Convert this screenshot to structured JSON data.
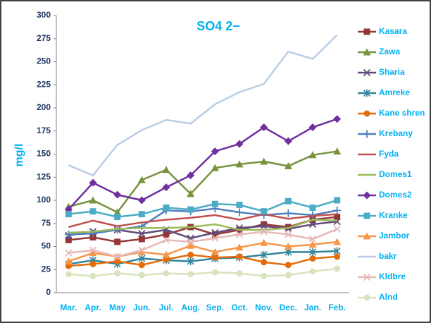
{
  "chart_data": {
    "type": "line",
    "title": "SO4 2−",
    "y_label": "mg/l",
    "categories": [
      "Mar.",
      "Apr.",
      "May",
      "Jun.",
      "Jul.",
      "Aug.",
      "Sep.",
      "Oct.",
      "Nov.",
      "Dec.",
      "Jan.",
      "Feb."
    ],
    "ylim": [
      0,
      300
    ],
    "yticks": [
      0,
      25,
      50,
      75,
      100,
      125,
      150,
      175,
      200,
      225,
      250,
      275,
      300
    ],
    "legend": "right",
    "series": [
      {
        "name": "Kasara",
        "color": "#943634",
        "marker": "square",
        "values": [
          57,
          60,
          55,
          58,
          63,
          71,
          63,
          68,
          74,
          71,
          79,
          82
        ]
      },
      {
        "name": "Zawa",
        "color": "#77933c",
        "marker": "triangle",
        "values": [
          93,
          100,
          87,
          122,
          133,
          107,
          135,
          139,
          142,
          137,
          149,
          153
        ]
      },
      {
        "name": "Sharia",
        "color": "#604a7b",
        "marker": "x",
        "values": [
          62,
          66,
          68,
          64,
          68,
          59,
          65,
          70,
          72,
          69,
          74,
          77
        ]
      },
      {
        "name": "Amreke",
        "color": "#31859c",
        "marker": "asterisk",
        "values": [
          31,
          35,
          31,
          37,
          35,
          34,
          37,
          38,
          41,
          44,
          44,
          45
        ]
      },
      {
        "name": "Kane shren",
        "color": "#e46c0a",
        "marker": "circle",
        "values": [
          29,
          31,
          34,
          30,
          36,
          41,
          38,
          39,
          33,
          30,
          37,
          39
        ]
      },
      {
        "name": "Krebany",
        "color": "#4f81bd",
        "marker": "plus",
        "values": [
          63,
          64,
          68,
          72,
          89,
          88,
          91,
          87,
          84,
          86,
          84,
          89
        ]
      },
      {
        "name": "Fyda",
        "color": "#c0504d",
        "marker": "none",
        "values": [
          71,
          78,
          72,
          76,
          79,
          81,
          84,
          79,
          85,
          80,
          83,
          85
        ]
      },
      {
        "name": "Domes1",
        "color": "#9bbb59",
        "marker": "none",
        "values": [
          65,
          66,
          69,
          70,
          70,
          71,
          74,
          68,
          68,
          70,
          79,
          78
        ]
      },
      {
        "name": "Domes2",
        "color": "#7030a0",
        "marker": "diamond",
        "values": [
          90,
          119,
          106,
          100,
          114,
          127,
          153,
          161,
          179,
          164,
          179,
          188
        ]
      },
      {
        "name": "Kranke",
        "color": "#4bacc6",
        "marker": "square",
        "values": [
          85,
          88,
          82,
          85,
          92,
          90,
          96,
          95,
          88,
          99,
          92,
          100
        ]
      },
      {
        "name": "Jambor",
        "color": "#f79646",
        "marker": "triangle",
        "values": [
          34,
          43,
          39,
          44,
          41,
          51,
          44,
          49,
          54,
          50,
          52,
          55
        ]
      },
      {
        "name": "bakr",
        "color": "#b9cde5",
        "marker": "none",
        "values": [
          138,
          127,
          160,
          176,
          187,
          183,
          204,
          217,
          226,
          261,
          253,
          279
        ]
      },
      {
        "name": "Kldbre",
        "color": "#e6b9b8",
        "marker": "x",
        "values": [
          43,
          46,
          39,
          46,
          57,
          55,
          59,
          63,
          66,
          63,
          58,
          69
        ]
      },
      {
        "name": "Alnd",
        "color": "#d7e4bd",
        "marker": "circle",
        "values": [
          20,
          18,
          21,
          19,
          21,
          20,
          22,
          21,
          18,
          19,
          23,
          26
        ]
      }
    ]
  }
}
